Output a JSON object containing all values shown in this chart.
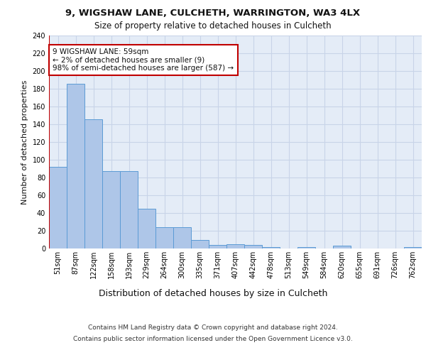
{
  "title_line1": "9, WIGSHAW LANE, CULCHETH, WARRINGTON, WA3 4LX",
  "title_line2": "Size of property relative to detached houses in Culcheth",
  "xlabel": "Distribution of detached houses by size in Culcheth",
  "ylabel": "Number of detached properties",
  "categories": [
    "51sqm",
    "87sqm",
    "122sqm",
    "158sqm",
    "193sqm",
    "229sqm",
    "264sqm",
    "300sqm",
    "335sqm",
    "371sqm",
    "407sqm",
    "442sqm",
    "478sqm",
    "513sqm",
    "549sqm",
    "584sqm",
    "620sqm",
    "655sqm",
    "691sqm",
    "726sqm",
    "762sqm"
  ],
  "values": [
    92,
    186,
    146,
    87,
    87,
    45,
    24,
    24,
    10,
    4,
    5,
    4,
    2,
    0,
    2,
    0,
    3,
    0,
    0,
    0,
    2
  ],
  "bar_color": "#aec6e8",
  "bar_edge_color": "#5b9bd5",
  "highlight_edge_color": "#c00000",
  "annotation_text": "9 WIGSHAW LANE: 59sqm\n← 2% of detached houses are smaller (9)\n98% of semi-detached houses are larger (587) →",
  "ylim": [
    0,
    240
  ],
  "yticks": [
    0,
    20,
    40,
    60,
    80,
    100,
    120,
    140,
    160,
    180,
    200,
    220,
    240
  ],
  "grid_color": "#c8d4e8",
  "bg_color": "#e4ecf7",
  "footer_line1": "Contains HM Land Registry data © Crown copyright and database right 2024.",
  "footer_line2": "Contains public sector information licensed under the Open Government Licence v3.0.",
  "title_fontsize": 9.5,
  "subtitle_fontsize": 8.5,
  "ylabel_fontsize": 8,
  "xlabel_fontsize": 9,
  "tick_fontsize": 7,
  "annotation_fontsize": 7.5,
  "footer_fontsize": 6.5
}
